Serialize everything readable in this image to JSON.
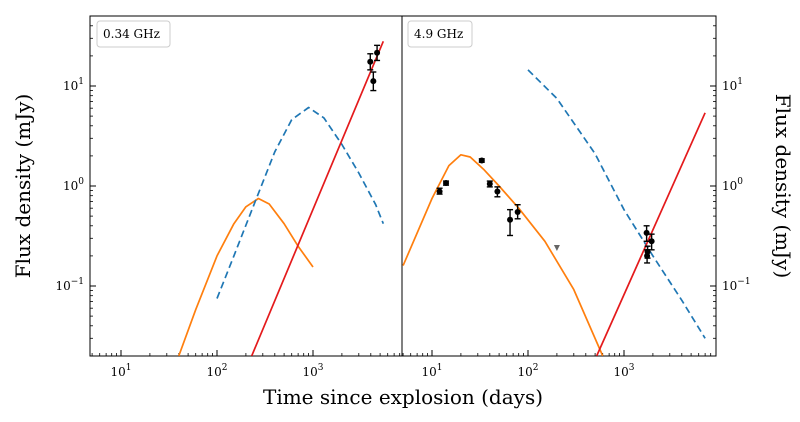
{
  "chart_data": {
    "type": "line",
    "xlabel": "Time since explosion (days)",
    "ylabel": "Flux density (mJy)",
    "yscale": "log",
    "xscale": "log",
    "grid": false,
    "legend": "none",
    "colors": {
      "orange_model": "#ff7f0e",
      "blue_dashed_model": "#1f77b4",
      "red_model": "#e41a1c",
      "data_points": "#000000",
      "upper_limit": "#666666"
    },
    "panels": [
      {
        "label": "0.34 GHz",
        "xlim": [
          5,
          5500
        ],
        "ylim": [
          0.02,
          50
        ],
        "x_ticks": [
          "10^1",
          "10^2",
          "10^3"
        ],
        "y_ticks_side": "left",
        "series": [
          {
            "style": "orange-solid",
            "x": [
              40,
              60,
              100,
              150,
              200,
              270,
              350,
              500,
              700,
              1000
            ],
            "y": [
              0.02,
              0.058,
              0.2,
              0.42,
              0.62,
              0.75,
              0.66,
              0.42,
              0.25,
              0.155
            ]
          },
          {
            "style": "blue-dashed",
            "x": [
              100,
              150,
              250,
              400,
              600,
              900,
              1300,
              2000,
              3000,
              4500,
              5400
            ],
            "y": [
              0.075,
              0.2,
              0.7,
              2.2,
              4.6,
              6.1,
              4.8,
              2.6,
              1.35,
              0.65,
              0.42
            ]
          },
          {
            "style": "red-solid",
            "x": [
              230,
              5400
            ],
            "y": [
              0.02,
              28
            ]
          }
        ],
        "points": [
          {
            "x": 3950,
            "y": 17.5,
            "lo": 14.5,
            "hi": 21.0
          },
          {
            "x": 4250,
            "y": 11.2,
            "lo": 9.0,
            "hi": 13.8
          },
          {
            "x": 4650,
            "y": 21.5,
            "lo": 18.0,
            "hi": 25.5
          }
        ],
        "upper_limits": []
      },
      {
        "label": "4.9 GHz",
        "xlim": [
          5,
          8000
        ],
        "ylim": [
          0.02,
          50
        ],
        "x_ticks": [
          "10^1",
          "10^2",
          "10^3"
        ],
        "y_ticks_side": "right",
        "series": [
          {
            "style": "orange-solid",
            "x": [
              5,
              10,
              15,
              20,
              25,
              35,
              50,
              80,
              150,
              300,
              600
            ],
            "y": [
              0.16,
              0.75,
              1.6,
              2.05,
              1.95,
              1.45,
              1.0,
              0.6,
              0.28,
              0.092,
              0.02
            ]
          },
          {
            "style": "blue-dashed",
            "x": [
              100,
              200,
              500,
              1000,
              2000,
              4000,
              7000
            ],
            "y": [
              14.5,
              7.5,
              2.1,
              0.58,
              0.2,
              0.072,
              0.03
            ]
          },
          {
            "style": "red-solid",
            "x": [
              520,
              7000
            ],
            "y": [
              0.02,
              5.4
            ]
          }
        ],
        "points": [
          {
            "x": 12,
            "y": 0.88,
            "lo": 0.83,
            "hi": 0.95
          },
          {
            "x": 14,
            "y": 1.07,
            "lo": 1.02,
            "hi": 1.12
          },
          {
            "x": 33,
            "y": 1.8,
            "lo": 1.73,
            "hi": 1.87
          },
          {
            "x": 40,
            "y": 1.05,
            "lo": 0.98,
            "hi": 1.12
          },
          {
            "x": 48,
            "y": 0.88,
            "lo": 0.78,
            "hi": 0.98
          },
          {
            "x": 65,
            "y": 0.46,
            "lo": 0.32,
            "hi": 0.58
          },
          {
            "x": 78,
            "y": 0.55,
            "lo": 0.47,
            "hi": 0.65
          },
          {
            "x": 1720,
            "y": 0.34,
            "lo": 0.28,
            "hi": 0.4
          },
          {
            "x": 1740,
            "y": 0.2,
            "lo": 0.17,
            "hi": 0.23
          },
          {
            "x": 1760,
            "y": 0.22,
            "lo": 0.19,
            "hi": 0.25
          },
          {
            "x": 1940,
            "y": 0.28,
            "lo": 0.23,
            "hi": 0.33
          }
        ],
        "upper_limits": [
          {
            "x": 200,
            "y": 0.24
          }
        ]
      }
    ]
  }
}
